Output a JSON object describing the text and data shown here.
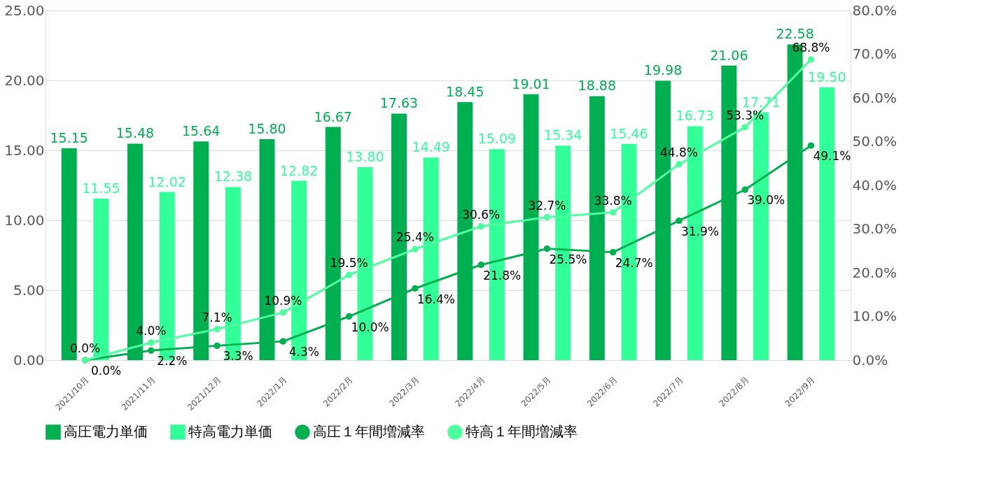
{
  "chart_data": {
    "type": "bar",
    "categories": [
      "2021/10月",
      "2021/11月",
      "2021/12月",
      "2022/1月",
      "2022/2月",
      "2022/3月",
      "2022/4月",
      "2022/5月",
      "2022/6月",
      "2022/7月",
      "2022/8月",
      "2022/9月"
    ],
    "series": [
      {
        "name": "高圧電力単価",
        "type": "bar",
        "color": "#00b050",
        "values": [
          15.15,
          15.48,
          15.64,
          15.8,
          16.67,
          17.63,
          18.45,
          19.01,
          18.88,
          19.98,
          21.06,
          22.58
        ],
        "value_labels": [
          "15.15",
          "15.48",
          "15.64",
          "15.80",
          "16.67",
          "17.63",
          "18.45",
          "19.01",
          "18.88",
          "19.98",
          "21.06",
          "22.58"
        ]
      },
      {
        "name": "特高電力単価",
        "type": "bar",
        "color": "#33ff99",
        "values": [
          11.55,
          12.02,
          12.38,
          12.82,
          13.8,
          14.49,
          15.09,
          15.34,
          15.46,
          16.73,
          17.71,
          19.5
        ],
        "value_labels": [
          "11.55",
          "12.02",
          "12.38",
          "12.82",
          "13.80",
          "14.49",
          "15.09",
          "15.34",
          "15.46",
          "16.73",
          "17.71",
          "19.50"
        ]
      },
      {
        "name": "高圧１年間増減率",
        "type": "line",
        "axis": "y2",
        "color": "#00b050",
        "values": [
          0.0,
          2.2,
          3.3,
          4.3,
          10.0,
          16.4,
          21.8,
          25.5,
          24.7,
          31.9,
          39.0,
          49.1
        ],
        "value_labels": [
          "0.0%",
          "2.2%",
          "3.3%",
          "4.3%",
          "10.0%",
          "16.4%",
          "21.8%",
          "25.5%",
          "24.7%",
          "31.9%",
          "39.0%",
          "49.1%"
        ]
      },
      {
        "name": "特高１年間増減率",
        "type": "line",
        "axis": "y2",
        "color": "#4dff9f",
        "values": [
          0.0,
          4.0,
          7.1,
          10.9,
          19.5,
          25.4,
          30.6,
          32.7,
          33.8,
          44.8,
          53.3,
          68.8
        ],
        "value_labels": [
          "0.0%",
          "4.0%",
          "7.1%",
          "10.9%",
          "19.5%",
          "25.4%",
          "30.6%",
          "32.7%",
          "33.8%",
          "44.8%",
          "53.3%",
          "68.8%"
        ]
      }
    ],
    "ylim": [
      0,
      25
    ],
    "yticks": [
      {
        "value": 0,
        "label": "0.00"
      },
      {
        "value": 5,
        "label": "5.00"
      },
      {
        "value": 10,
        "label": "10.00"
      },
      {
        "value": 15,
        "label": "15.00"
      },
      {
        "value": 20,
        "label": "20.00"
      },
      {
        "value": 25,
        "label": "25.00"
      }
    ],
    "y2lim": [
      0,
      80
    ],
    "y2ticks": [
      {
        "value": 0,
        "label": "0.0%"
      },
      {
        "value": 10,
        "label": "10.0%"
      },
      {
        "value": 20,
        "label": "20.0%"
      },
      {
        "value": 30,
        "label": "30.0%"
      },
      {
        "value": 40,
        "label": "40.0%"
      },
      {
        "value": 50,
        "label": "50.0%"
      },
      {
        "value": 60,
        "label": "60.0%"
      },
      {
        "value": 70,
        "label": "70.0%"
      },
      {
        "value": 80,
        "label": "80.0%"
      }
    ],
    "grid": "y",
    "legend": "bottom",
    "marker": "circle",
    "line_style": "solid"
  }
}
